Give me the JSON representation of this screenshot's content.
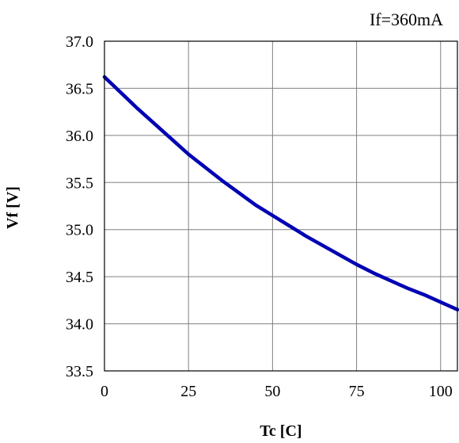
{
  "chart_data": {
    "type": "line",
    "title": "",
    "annotation": "If=360mA",
    "xlabel": "Tc [C]",
    "ylabel": "Vf [V]",
    "xlim": [
      0,
      105
    ],
    "ylim": [
      33.5,
      37.0
    ],
    "xticks": [
      0,
      25,
      50,
      75,
      100
    ],
    "xtick_labels": [
      "0",
      "25",
      "50",
      "75",
      "100"
    ],
    "yticks": [
      33.5,
      34.0,
      34.5,
      35.0,
      35.5,
      36.0,
      36.5,
      37.0
    ],
    "ytick_labels": [
      "33.5",
      "34.0",
      "34.5",
      "35.0",
      "35.5",
      "36.0",
      "36.5",
      "37.0"
    ],
    "grid": true,
    "series": [
      {
        "color": "#0000b4",
        "x": [
          0,
          5,
          10,
          15,
          20,
          25,
          30,
          35,
          40,
          45,
          50,
          55,
          60,
          65,
          70,
          75,
          80,
          85,
          90,
          95,
          100,
          105
        ],
        "y": [
          36.62,
          36.45,
          36.28,
          36.12,
          35.96,
          35.8,
          35.66,
          35.52,
          35.39,
          35.26,
          35.15,
          35.04,
          34.93,
          34.83,
          34.73,
          34.63,
          34.54,
          34.46,
          34.38,
          34.31,
          34.23,
          34.15
        ]
      }
    ]
  }
}
